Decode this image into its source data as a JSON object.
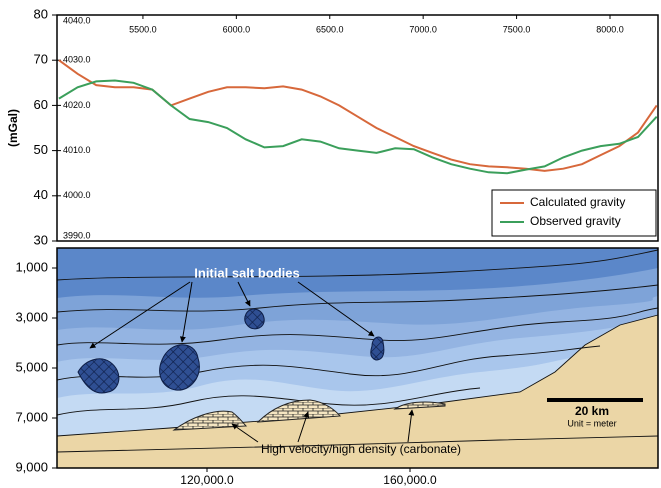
{
  "chart_data": [
    {
      "type": "line",
      "ylabel": "(mGal)",
      "x": [
        5050,
        5150,
        5250,
        5350,
        5450,
        5550,
        5650,
        5750,
        5850,
        5950,
        6050,
        6150,
        6250,
        6350,
        6450,
        6550,
        6650,
        6750,
        6850,
        6950,
        7050,
        7150,
        7250,
        7350,
        7450,
        7550,
        7650,
        7750,
        7850,
        7950,
        8050,
        8150,
        8250
      ],
      "series": [
        {
          "name": "Calculated gravity",
          "color": "#d7683b",
          "values": [
            70,
            67,
            64.5,
            64,
            64,
            63.5,
            60,
            61.5,
            63,
            64,
            64,
            63.8,
            64.2,
            63.5,
            62,
            60,
            57.5,
            55,
            53,
            51,
            49.5,
            48,
            47,
            46.5,
            46.3,
            46,
            45.5,
            46,
            47,
            49,
            51,
            54,
            60
          ]
        },
        {
          "name": "Observed gravity",
          "color": "#3b9f5b",
          "values": [
            61.5,
            64,
            65.3,
            65.5,
            65,
            63.5,
            60,
            57,
            56.3,
            55,
            52.5,
            50.7,
            51,
            52.5,
            52,
            50.5,
            50,
            49.5,
            50.5,
            50.3,
            48.5,
            47,
            46,
            45.2,
            45,
            45.8,
            46.5,
            48.5,
            50,
            51,
            51.5,
            53,
            57.5
          ]
        }
      ],
      "xlim": [
        5040,
        8257
      ],
      "xticks": [
        {
          "value": 5500,
          "label": "5500.0"
        },
        {
          "value": 6000,
          "label": "6000.0"
        },
        {
          "value": 6500,
          "label": "6500.0"
        },
        {
          "value": 7000,
          "label": "7000.0"
        },
        {
          "value": 7500,
          "label": "7500.0"
        },
        {
          "value": 8000,
          "label": "8000.0"
        }
      ],
      "ylim": [
        30,
        80
      ],
      "yticks": [
        30,
        40,
        50,
        60,
        70,
        80
      ],
      "y2lim": [
        3990,
        4040
      ],
      "y2ticks": [
        {
          "value": 3990,
          "label": "3990.0"
        },
        {
          "value": 4000,
          "label": "4000.0"
        },
        {
          "value": 4010,
          "label": "4010.0"
        },
        {
          "value": 4020,
          "label": "4020.0"
        },
        {
          "value": 4030,
          "label": "4030.0"
        },
        {
          "value": 4040,
          "label": "4040.0"
        }
      ],
      "legend": "lower right"
    },
    {
      "type": "cross-section",
      "inverted_y": true,
      "xlim": [
        90443,
        208867
      ],
      "xticks": [
        {
          "value": 120000,
          "label": "120,000.0"
        },
        {
          "value": 160000,
          "label": "160,000.0"
        }
      ],
      "ylim": [
        200,
        9000
      ],
      "yticks": [
        {
          "value": 1000,
          "label": "1,000"
        },
        {
          "value": 3000,
          "label": "3,000"
        },
        {
          "value": 5000,
          "label": "5,000"
        },
        {
          "value": 7000,
          "label": "7,000"
        },
        {
          "value": 9000,
          "label": "9,000"
        }
      ],
      "annotations": [
        "Initial salt bodies",
        "High velocity/high density (carbonate)",
        "20 km",
        "Unit = meter"
      ]
    }
  ]
}
